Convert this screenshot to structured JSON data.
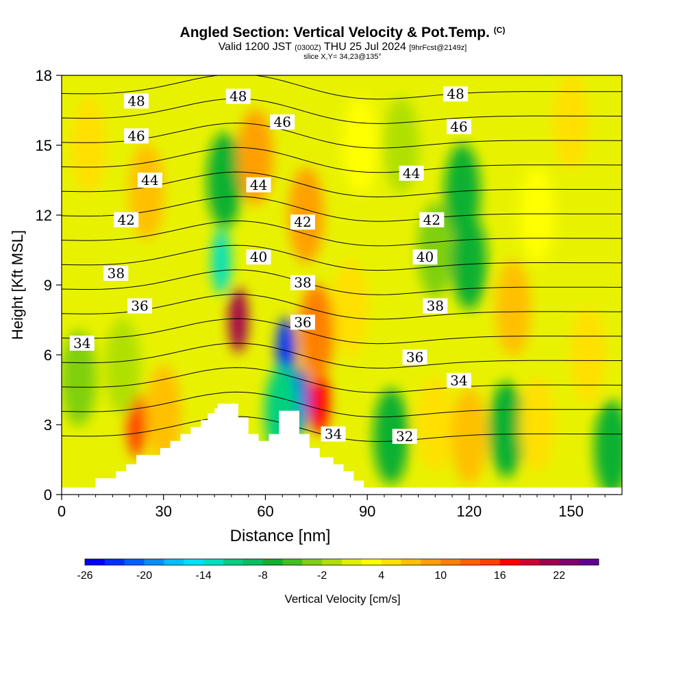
{
  "titles": {
    "main": "Angled Section: Vertical Velocity & Pot.Temp.",
    "main_mark": "(C)",
    "valid_prefix": "Valid 1200 JST",
    "valid_utc": "(0300Z)",
    "valid_date": "THU 25 Jul 2024",
    "forecast_info": "[9hrFcst@2149z]",
    "slice": "slice X,Y= 34,23@135°"
  },
  "chart_data": {
    "type": "heatmap",
    "xlabel": "Distance [nm]",
    "ylabel": "Height [Kft MSL]",
    "xlim": [
      0,
      165
    ],
    "ylim": [
      0,
      18
    ],
    "x_ticks": [
      0,
      30,
      60,
      90,
      120,
      150
    ],
    "y_ticks": [
      0,
      3,
      6,
      9,
      12,
      15,
      18
    ],
    "colorbar": {
      "label": "Vertical Velocity [cm/s]",
      "min": -26,
      "max": 26,
      "step": 2,
      "tick_labels": [
        "-26",
        "-20",
        "-14",
        "-8",
        "-2",
        "4",
        "10",
        "16",
        "22"
      ],
      "tick_values": [
        -26,
        -20,
        -14,
        -8,
        -2,
        4,
        10,
        16,
        22
      ],
      "colors": [
        "#0000ff",
        "#0030ff",
        "#0060ff",
        "#0090ff",
        "#00c0ff",
        "#00e0ff",
        "#00e0c0",
        "#00d080",
        "#00c060",
        "#10b030",
        "#40c020",
        "#80d010",
        "#b0e000",
        "#e0f000",
        "#ffff00",
        "#ffe000",
        "#ffc000",
        "#ffa000",
        "#ff8000",
        "#ff6000",
        "#ff4000",
        "#ff0000",
        "#d00030",
        "#a00050",
        "#800070",
        "#600090"
      ]
    },
    "vertical_velocity_features": [
      {
        "x": 52,
        "z": 7.5,
        "value": 20
      },
      {
        "x": 66,
        "z": 6.2,
        "value": -24
      },
      {
        "x": 70,
        "z": 4.0,
        "value": -24
      },
      {
        "x": 76,
        "z": 4.0,
        "value": 16
      },
      {
        "x": 75,
        "z": 7.0,
        "value": 10
      },
      {
        "x": 47,
        "z": 10.0,
        "value": -14
      },
      {
        "x": 48,
        "z": 13.5,
        "value": -8
      },
      {
        "x": 57,
        "z": 14.5,
        "value": 8
      },
      {
        "x": 72,
        "z": 12.0,
        "value": 8
      },
      {
        "x": 65,
        "z": 3.5,
        "value": -12
      },
      {
        "x": 22,
        "z": 3.0,
        "value": 14
      },
      {
        "x": 30,
        "z": 3.5,
        "value": 6
      },
      {
        "x": 25,
        "z": 13.0,
        "value": 6
      },
      {
        "x": 18,
        "z": 5.5,
        "value": -2
      },
      {
        "x": 97,
        "z": 2.5,
        "value": -8
      },
      {
        "x": 110,
        "z": 3.0,
        "value": 4
      },
      {
        "x": 120,
        "z": 2.5,
        "value": 6
      },
      {
        "x": 131,
        "z": 2.8,
        "value": -8
      },
      {
        "x": 140,
        "z": 3.0,
        "value": 4
      },
      {
        "x": 162,
        "z": 2.0,
        "value": -8
      },
      {
        "x": 110,
        "z": 10.5,
        "value": -4
      },
      {
        "x": 118,
        "z": 13.0,
        "value": -8
      },
      {
        "x": 120,
        "z": 10.0,
        "value": -8
      },
      {
        "x": 100,
        "z": 15.0,
        "value": -2
      },
      {
        "x": 140,
        "z": 12.0,
        "value": 2
      },
      {
        "x": 133,
        "z": 8.0,
        "value": 6
      },
      {
        "x": 155,
        "z": 6.0,
        "value": 4
      },
      {
        "x": 150,
        "z": 16.0,
        "value": 4
      },
      {
        "x": 88,
        "z": 15.0,
        "value": 2
      },
      {
        "x": 85,
        "z": 8.0,
        "value": 4
      },
      {
        "x": 8,
        "z": 15.0,
        "value": 4
      },
      {
        "x": 5,
        "z": 5.0,
        "value": -4
      }
    ],
    "potential_temperature_contours": [
      {
        "level": 34,
        "labels": [
          {
            "x": 6,
            "z": 6.5
          },
          {
            "x": 80,
            "z": 2.6
          },
          {
            "x": 117,
            "z": 4.9
          }
        ]
      },
      {
        "level": 36,
        "labels": [
          {
            "x": 23,
            "z": 8.1
          },
          {
            "x": 71,
            "z": 7.4
          },
          {
            "x": 104,
            "z": 5.9
          }
        ]
      },
      {
        "level": 38,
        "labels": [
          {
            "x": 16,
            "z": 9.5
          },
          {
            "x": 71,
            "z": 9.1
          },
          {
            "x": 110,
            "z": 8.1
          }
        ]
      },
      {
        "level": 40,
        "labels": [
          {
            "x": 58,
            "z": 10.2
          },
          {
            "x": 107,
            "z": 10.2
          }
        ]
      },
      {
        "level": 42,
        "labels": [
          {
            "x": 19,
            "z": 11.8
          },
          {
            "x": 71,
            "z": 11.7
          },
          {
            "x": 109,
            "z": 11.8
          }
        ]
      },
      {
        "level": 44,
        "labels": [
          {
            "x": 26,
            "z": 13.5
          },
          {
            "x": 58,
            "z": 13.3
          },
          {
            "x": 103,
            "z": 13.8
          }
        ]
      },
      {
        "level": 46,
        "labels": [
          {
            "x": 22,
            "z": 15.4
          },
          {
            "x": 65,
            "z": 16.0
          },
          {
            "x": 117,
            "z": 15.8
          }
        ]
      },
      {
        "level": 48,
        "labels": [
          {
            "x": 22,
            "z": 16.9
          },
          {
            "x": 52,
            "z": 17.1
          },
          {
            "x": 116,
            "z": 17.2
          }
        ]
      },
      {
        "level": 32,
        "labels": [
          {
            "x": 101,
            "z": 2.5
          }
        ]
      }
    ],
    "terrain": [
      [
        0,
        0.3
      ],
      [
        10,
        0.3
      ],
      [
        10,
        0.7
      ],
      [
        16,
        0.7
      ],
      [
        16,
        1.0
      ],
      [
        19,
        1.0
      ],
      [
        19,
        1.3
      ],
      [
        22,
        1.3
      ],
      [
        22,
        1.7
      ],
      [
        29,
        1.7
      ],
      [
        29,
        2.0
      ],
      [
        32,
        2.0
      ],
      [
        32,
        2.3
      ],
      [
        35,
        2.3
      ],
      [
        35,
        2.6
      ],
      [
        38,
        2.6
      ],
      [
        38,
        2.9
      ],
      [
        41,
        2.9
      ],
      [
        41,
        3.2
      ],
      [
        43,
        3.2
      ],
      [
        43,
        3.5
      ],
      [
        45,
        3.5
      ],
      [
        45,
        3.7
      ],
      [
        46,
        3.7
      ],
      [
        46,
        3.9
      ],
      [
        52,
        3.9
      ],
      [
        52,
        3.3
      ],
      [
        55,
        3.3
      ],
      [
        55,
        2.6
      ],
      [
        58,
        2.6
      ],
      [
        58,
        2.3
      ],
      [
        61,
        2.3
      ],
      [
        61,
        2.6
      ],
      [
        64,
        2.6
      ],
      [
        64,
        3.6
      ],
      [
        70,
        3.6
      ],
      [
        70,
        2.6
      ],
      [
        73,
        2.6
      ],
      [
        73,
        2.0
      ],
      [
        76,
        2.0
      ],
      [
        76,
        1.6
      ],
      [
        80,
        1.6
      ],
      [
        80,
        1.3
      ],
      [
        83,
        1.3
      ],
      [
        83,
        1.0
      ],
      [
        86,
        1.0
      ],
      [
        86,
        0.6
      ],
      [
        89,
        0.6
      ],
      [
        89,
        0.3
      ],
      [
        165,
        0.3
      ]
    ]
  }
}
